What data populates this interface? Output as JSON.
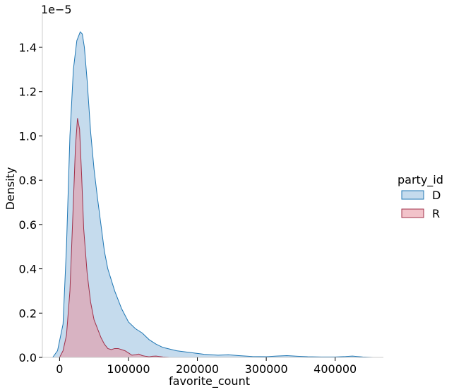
{
  "chart_data": {
    "type": "area",
    "title": "",
    "xlabel": "favorite_count",
    "ylabel": "Density",
    "y_scale_label": "1e−5",
    "xlim": [
      -25000,
      470000
    ],
    "ylim": [
      0,
      1.55
    ],
    "x_ticks": [
      0,
      100000,
      200000,
      300000,
      400000
    ],
    "x_tick_labels": [
      "0",
      "100000",
      "200000",
      "300000",
      "400000"
    ],
    "y_ticks": [
      0.0,
      0.2,
      0.4,
      0.6,
      0.8,
      1.0,
      1.2,
      1.4
    ],
    "y_tick_labels": [
      "0.0",
      "0.2",
      "0.4",
      "0.6",
      "0.8",
      "1.0",
      "1.2",
      "1.4"
    ],
    "grid": false,
    "legend": {
      "title": "party_id",
      "placement": "center-right",
      "entries": [
        "D",
        "R"
      ]
    },
    "series": [
      {
        "name": "D",
        "color": "#1f77b4",
        "fill": "#a6c8e4",
        "x": [
          -10000,
          -3000,
          5000,
          10000,
          15000,
          20000,
          25000,
          30000,
          33000,
          36000,
          40000,
          45000,
          50000,
          55000,
          60000,
          65000,
          70000,
          80000,
          90000,
          100000,
          110000,
          120000,
          130000,
          140000,
          150000,
          170000,
          190000,
          210000,
          230000,
          245000,
          260000,
          280000,
          300000,
          315000,
          330000,
          345000,
          360000,
          380000,
          400000,
          415000,
          425000,
          440000,
          455000
        ],
        "y": [
          0.0,
          0.03,
          0.15,
          0.5,
          1.0,
          1.3,
          1.43,
          1.47,
          1.46,
          1.4,
          1.25,
          1.02,
          0.85,
          0.72,
          0.6,
          0.48,
          0.4,
          0.3,
          0.22,
          0.16,
          0.13,
          0.11,
          0.08,
          0.06,
          0.045,
          0.03,
          0.022,
          0.014,
          0.01,
          0.012,
          0.008,
          0.004,
          0.003,
          0.006,
          0.008,
          0.005,
          0.003,
          0.002,
          0.002,
          0.004,
          0.006,
          0.002,
          0.0
        ]
      },
      {
        "name": "R",
        "color": "#a0304a",
        "fill": "#e8929e",
        "x": [
          0,
          5000,
          10000,
          15000,
          20000,
          23000,
          26000,
          29000,
          32000,
          35000,
          40000,
          45000,
          50000,
          55000,
          60000,
          65000,
          70000,
          75000,
          80000,
          85000,
          90000,
          95000,
          100000,
          105000,
          110000,
          115000,
          120000,
          125000,
          130000,
          135000,
          140000,
          145000,
          150000,
          160000
        ],
        "y": [
          0.0,
          0.03,
          0.1,
          0.3,
          0.7,
          0.95,
          1.08,
          1.03,
          0.82,
          0.58,
          0.38,
          0.25,
          0.17,
          0.13,
          0.09,
          0.06,
          0.04,
          0.035,
          0.04,
          0.04,
          0.035,
          0.03,
          0.02,
          0.01,
          0.012,
          0.015,
          0.008,
          0.005,
          0.003,
          0.005,
          0.006,
          0.004,
          0.002,
          0.0
        ]
      }
    ]
  }
}
